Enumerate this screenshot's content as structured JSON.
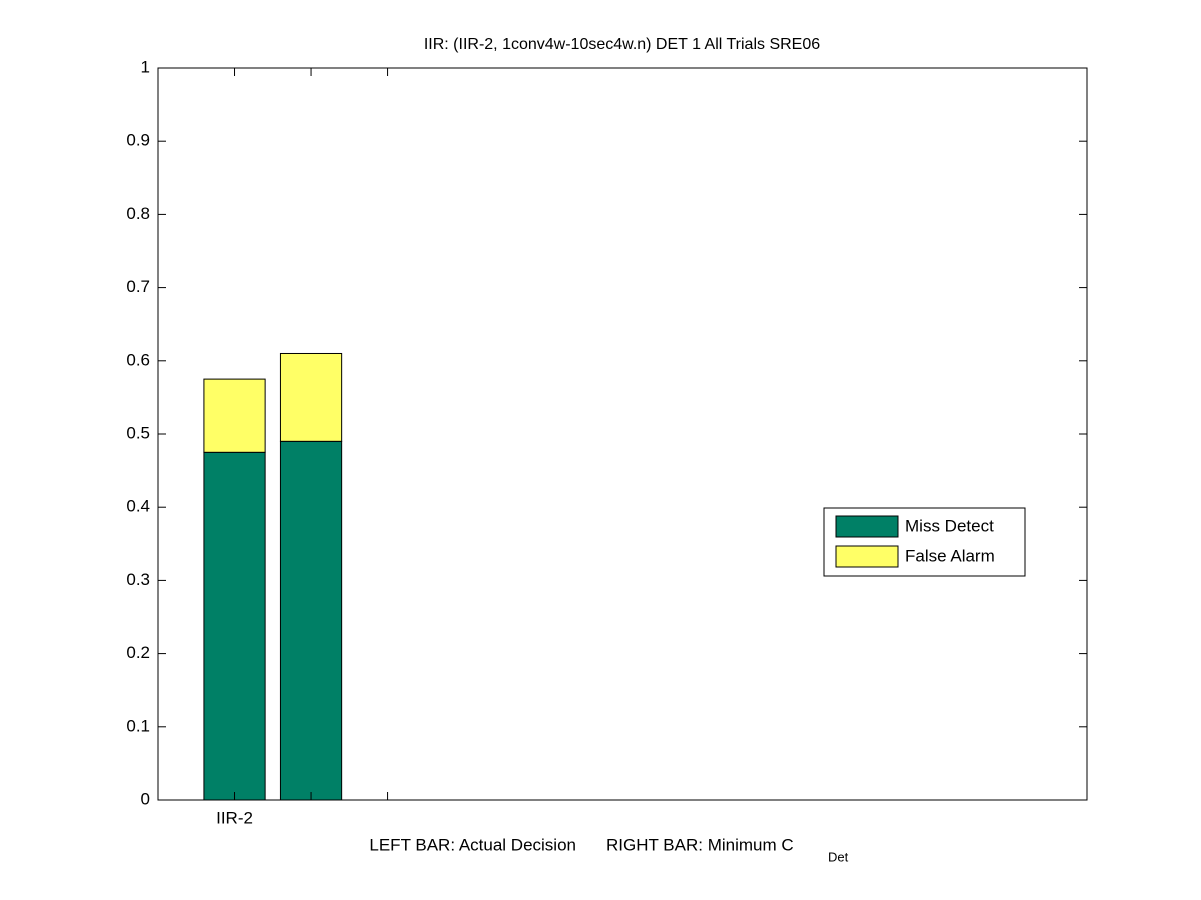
{
  "chart_data": {
    "type": "stacked_bar",
    "title": "IIR: (IIR-2, 1conv4w-10sec4w.n) DET 1 All Trials SRE06",
    "xlabel": {
      "left": "LEFT BAR: Actual Decision",
      "right": "RIGHT BAR: Minimum C",
      "subscript": "Det"
    },
    "x": [
      1,
      2,
      3
    ],
    "xlim": [
      0,
      12.14
    ],
    "xticks": [
      {
        "value": 1,
        "label": "IIR-2"
      },
      {
        "value": 2,
        "label": null
      },
      {
        "value": 3,
        "label": null
      }
    ],
    "ylim": [
      0,
      1
    ],
    "yticks": [
      0,
      0.1,
      0.2,
      0.3,
      0.4,
      0.5,
      0.6,
      0.7,
      0.8,
      0.9,
      1
    ],
    "series": [
      {
        "name": "Miss Detect",
        "color": "#008066",
        "values": [
          0.475,
          0.49,
          null
        ]
      },
      {
        "name": "False Alarm",
        "color": "#ffff66",
        "values": [
          0.1,
          0.12,
          null
        ]
      }
    ],
    "legend": "right",
    "grid": false
  }
}
